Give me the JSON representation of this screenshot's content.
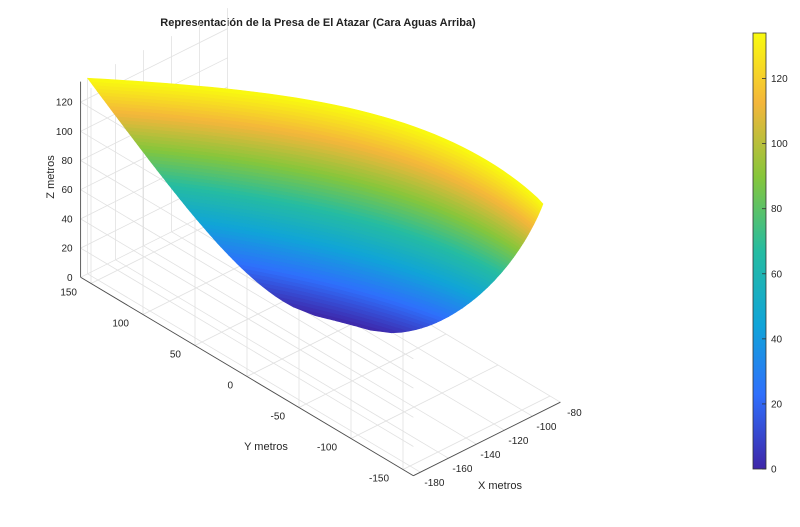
{
  "chart_data": {
    "type": "surface",
    "title": "Representación de la Presa de El Atazar (Cara Aguas Arriba)",
    "xlabel": "X metros",
    "ylabel": "Y metros",
    "zlabel": "Z metros",
    "x_ticks": [
      "-180",
      "-160",
      "-140",
      "-120",
      "-100",
      "-80"
    ],
    "y_ticks": [
      "-150",
      "-100",
      "-50",
      "0",
      "50",
      "100",
      "150"
    ],
    "z_ticks": [
      "0",
      "20",
      "40",
      "60",
      "80",
      "100",
      "120"
    ],
    "xlim": [
      -185,
      -80
    ],
    "ylim": [
      -160,
      160
    ],
    "zlim": [
      0,
      134
    ],
    "colormap": "parula",
    "colormap_colors": [
      "#3e26a8",
      "#2f6ffc",
      "#10a4d8",
      "#25bca1",
      "#86c63b",
      "#f4b63b",
      "#f9fb0e"
    ],
    "colorbar": {
      "range": [
        0,
        134
      ],
      "ticks": [
        "0",
        "20",
        "40",
        "60",
        "80",
        "100",
        "120"
      ]
    },
    "grid": true,
    "surface": {
      "description_of_shape": "curved arch dam upstream face",
      "height_range": [
        0,
        134
      ],
      "crest_y_range": [
        -150,
        160
      ],
      "crest_x_range": [
        -85,
        -180
      ]
    }
  }
}
